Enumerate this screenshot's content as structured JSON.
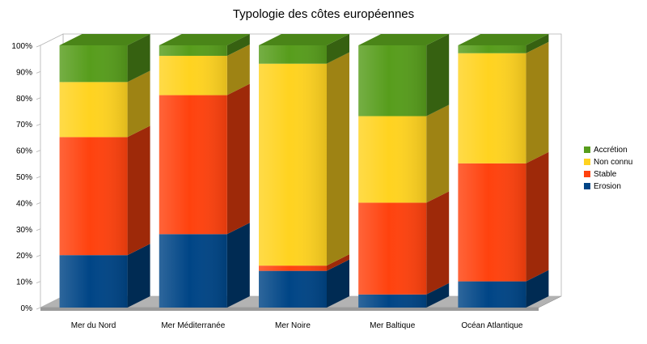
{
  "chart_data": {
    "type": "bar",
    "stacked": true,
    "three_d": true,
    "title": "Typologie des côtes européennes",
    "xlabel": "",
    "ylabel": "",
    "categories": [
      "Mer du Nord",
      "Mer Méditerranée",
      "Mer Noire",
      "Mer Baltique",
      "Océan Atlantique"
    ],
    "series": [
      {
        "name": "Erosion",
        "color": "#004586",
        "values": [
          20,
          28,
          14,
          5,
          10
        ]
      },
      {
        "name": "Stable",
        "color": "#ff420e",
        "values": [
          45,
          53,
          2,
          35,
          45
        ]
      },
      {
        "name": "Non connu",
        "color": "#ffd320",
        "values": [
          21,
          15,
          77,
          33,
          42
        ]
      },
      {
        "name": "Accrétion",
        "color": "#579d1c",
        "values": [
          14,
          4,
          7,
          27,
          3
        ]
      }
    ],
    "ylim": [
      0,
      100
    ],
    "yticks": [
      "0%",
      "10%",
      "20%",
      "30%",
      "40%",
      "50%",
      "60%",
      "70%",
      "80%",
      "90%",
      "100%"
    ],
    "grid": false,
    "legend_position": "right",
    "legend_order": [
      "Accrétion",
      "Non connu",
      "Stable",
      "Erosion"
    ],
    "floor_color": "#b3b3b3",
    "wall_color": "#ffffff"
  }
}
